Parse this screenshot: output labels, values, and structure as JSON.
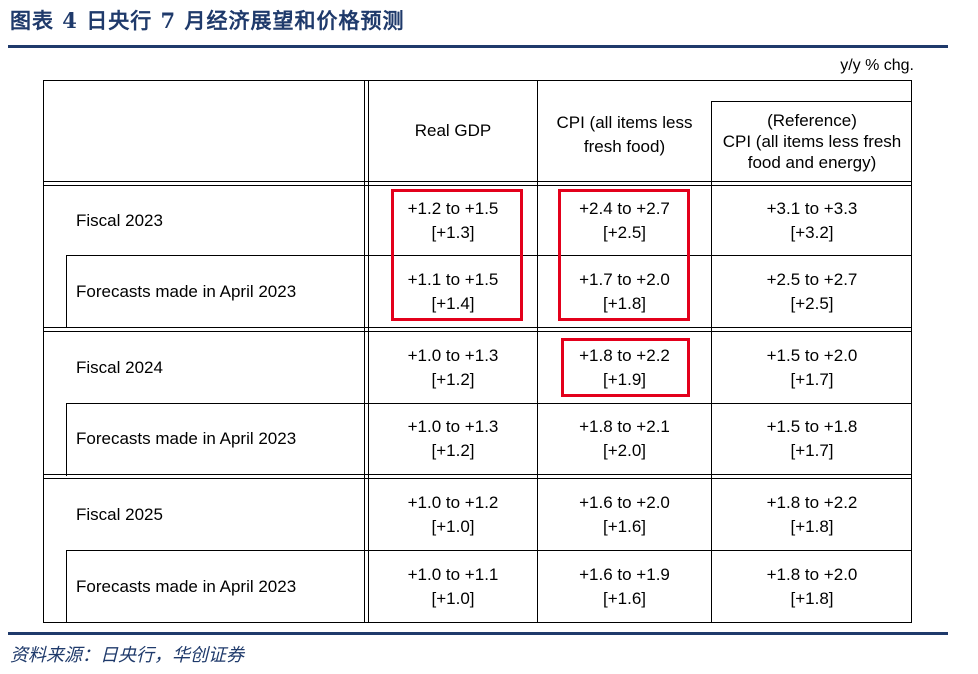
{
  "title": "图表 4    日央行 7 月经济展望和价格预测",
  "unit": "y/y % chg.",
  "columns": {
    "gdp": "Real GDP",
    "cpi": "CPI (all items less fresh food)",
    "ref_line1": "(Reference)",
    "ref_line2": "CPI (all items less fresh food and energy)"
  },
  "rows": [
    {
      "label": "Fiscal 2023",
      "gdp": "+1.2 to +1.5",
      "gdp_mid": "[+1.3]",
      "cpi": "+2.4 to +2.7",
      "cpi_mid": "[+2.5]",
      "ref": "+3.1 to +3.3",
      "ref_mid": "[+3.2]"
    },
    {
      "label": "Forecasts made in April 2023",
      "gdp": "+1.1 to +1.5",
      "gdp_mid": "[+1.4]",
      "cpi": "+1.7 to +2.0",
      "cpi_mid": "[+1.8]",
      "ref": "+2.5 to +2.7",
      "ref_mid": "[+2.5]"
    },
    {
      "label": "Fiscal 2024",
      "gdp": "+1.0 to +1.3",
      "gdp_mid": "[+1.2]",
      "cpi": "+1.8 to +2.2",
      "cpi_mid": "[+1.9]",
      "ref": "+1.5 to +2.0",
      "ref_mid": "[+1.7]"
    },
    {
      "label": "Forecasts made in April 2023",
      "gdp": "+1.0 to +1.3",
      "gdp_mid": "[+1.2]",
      "cpi": "+1.8 to +2.1",
      "cpi_mid": "[+2.0]",
      "ref": "+1.5 to +1.8",
      "ref_mid": "[+1.7]"
    },
    {
      "label": "Fiscal 2025",
      "gdp": "+1.0 to +1.2",
      "gdp_mid": "[+1.0]",
      "cpi": "+1.6 to +2.0",
      "cpi_mid": "[+1.6]",
      "ref": "+1.8 to +2.2",
      "ref_mid": "[+1.8]"
    },
    {
      "label": "Forecasts made in April 2023",
      "gdp": "+1.0 to +1.1",
      "gdp_mid": "[+1.0]",
      "cpi": "+1.6 to +1.9",
      "cpi_mid": "[+1.6]",
      "ref": "+1.8 to +2.0",
      "ref_mid": "[+1.8]"
    }
  ],
  "highlight_color": "#e3001b",
  "accent_color": "#1f3a6b",
  "source": "资料来源：日央行，华创证券"
}
